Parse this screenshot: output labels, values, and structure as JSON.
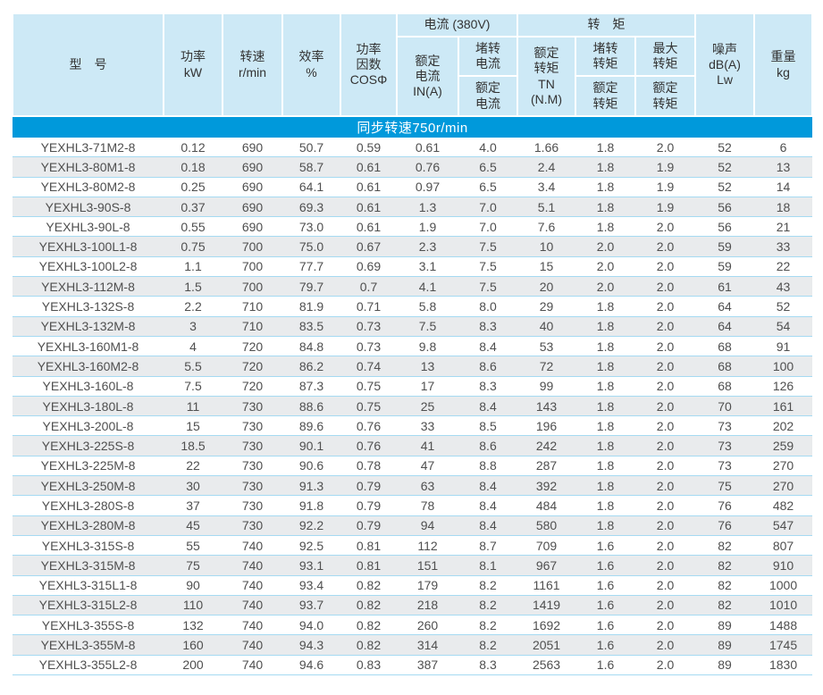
{
  "colors": {
    "banner_bg": "#0099db",
    "header_bg": "#cde9f6",
    "row_alt_bg": "#e9ebed",
    "row_line": "#a5daf2",
    "banner_text": "#ffffff",
    "body_text": "#4f4f4f",
    "header_text": "#333333"
  },
  "table": {
    "banner": "同步转速750r/min",
    "header": {
      "model": "型　号",
      "power": "功率\nkW",
      "speed": "转速\nr/min",
      "efficiency": "效率\n%",
      "power_factor": "功率\n因数\nCOSΦ",
      "current_group": "电流 (380V)",
      "rated_current": "额定\n电流\nIN(A)",
      "locked_current_num": "堵转\n电流",
      "locked_current_den": "额定\n电流",
      "torque_group": "转　矩",
      "rated_torque": "额定\n转矩\nTN\n(N.M)",
      "locked_torque_num": "堵转\n转矩",
      "locked_torque_den": "额定\n转矩",
      "max_torque_num": "最大\n转矩",
      "max_torque_den": "额定\n转矩",
      "noise": "噪声\ndB(A)\nLw",
      "weight": "重量\nkg"
    },
    "rows": [
      [
        "YEXHL3-71M2-8",
        "0.12",
        "690",
        "50.7",
        "0.59",
        "0.61",
        "4.0",
        "1.66",
        "1.8",
        "2.0",
        "52",
        "6"
      ],
      [
        "YEXHL3-80M1-8",
        "0.18",
        "690",
        "58.7",
        "0.61",
        "0.76",
        "6.5",
        "2.4",
        "1.8",
        "1.9",
        "52",
        "13"
      ],
      [
        "YEXHL3-80M2-8",
        "0.25",
        "690",
        "64.1",
        "0.61",
        "0.97",
        "6.5",
        "3.4",
        "1.8",
        "1.9",
        "52",
        "14"
      ],
      [
        "YEXHL3-90S-8",
        "0.37",
        "690",
        "69.3",
        "0.61",
        "1.3",
        "7.0",
        "5.1",
        "1.8",
        "1.9",
        "56",
        "18"
      ],
      [
        "YEXHL3-90L-8",
        "0.55",
        "690",
        "73.0",
        "0.61",
        "1.9",
        "7.0",
        "7.6",
        "1.8",
        "2.0",
        "56",
        "21"
      ],
      [
        "YEXHL3-100L1-8",
        "0.75",
        "700",
        "75.0",
        "0.67",
        "2.3",
        "7.5",
        "10",
        "2.0",
        "2.0",
        "59",
        "33"
      ],
      [
        "YEXHL3-100L2-8",
        "1.1",
        "700",
        "77.7",
        "0.69",
        "3.1",
        "7.5",
        "15",
        "2.0",
        "2.0",
        "59",
        "22"
      ],
      [
        "YEXHL3-112M-8",
        "1.5",
        "700",
        "79.7",
        "0.7",
        "4.1",
        "7.5",
        "20",
        "2.0",
        "2.0",
        "61",
        "43"
      ],
      [
        "YEXHL3-132S-8",
        "2.2",
        "710",
        "81.9",
        "0.71",
        "5.8",
        "8.0",
        "29",
        "1.8",
        "2.0",
        "64",
        "52"
      ],
      [
        "YEXHL3-132M-8",
        "3",
        "710",
        "83.5",
        "0.73",
        "7.5",
        "8.3",
        "40",
        "1.8",
        "2.0",
        "64",
        "54"
      ],
      [
        "YEXHL3-160M1-8",
        "4",
        "720",
        "84.8",
        "0.73",
        "9.8",
        "8.4",
        "53",
        "1.8",
        "2.0",
        "68",
        "91"
      ],
      [
        "YEXHL3-160M2-8",
        "5.5",
        "720",
        "86.2",
        "0.74",
        "13",
        "8.6",
        "72",
        "1.8",
        "2.0",
        "68",
        "100"
      ],
      [
        "YEXHL3-160L-8",
        "7.5",
        "720",
        "87.3",
        "0.75",
        "17",
        "8.3",
        "99",
        "1.8",
        "2.0",
        "68",
        "126"
      ],
      [
        "YEXHL3-180L-8",
        "11",
        "730",
        "88.6",
        "0.75",
        "25",
        "8.4",
        "143",
        "1.8",
        "2.0",
        "70",
        "161"
      ],
      [
        "YEXHL3-200L-8",
        "15",
        "730",
        "89.6",
        "0.76",
        "33",
        "8.5",
        "196",
        "1.8",
        "2.0",
        "73",
        "202"
      ],
      [
        "YEXHL3-225S-8",
        "18.5",
        "730",
        "90.1",
        "0.76",
        "41",
        "8.6",
        "242",
        "1.8",
        "2.0",
        "73",
        "259"
      ],
      [
        "YEXHL3-225M-8",
        "22",
        "730",
        "90.6",
        "0.78",
        "47",
        "8.8",
        "287",
        "1.8",
        "2.0",
        "73",
        "270"
      ],
      [
        "YEXHL3-250M-8",
        "30",
        "730",
        "91.3",
        "0.79",
        "63",
        "8.4",
        "392",
        "1.8",
        "2.0",
        "75",
        "270"
      ],
      [
        "YEXHL3-280S-8",
        "37",
        "730",
        "91.8",
        "0.79",
        "78",
        "8.4",
        "484",
        "1.8",
        "2.0",
        "76",
        "482"
      ],
      [
        "YEXHL3-280M-8",
        "45",
        "730",
        "92.2",
        "0.79",
        "94",
        "8.4",
        "580",
        "1.8",
        "2.0",
        "76",
        "547"
      ],
      [
        "YEXHL3-315S-8",
        "55",
        "740",
        "92.5",
        "0.81",
        "112",
        "8.7",
        "709",
        "1.6",
        "2.0",
        "82",
        "807"
      ],
      [
        "YEXHL3-315M-8",
        "75",
        "740",
        "93.1",
        "0.81",
        "151",
        "8.1",
        "967",
        "1.6",
        "2.0",
        "82",
        "910"
      ],
      [
        "YEXHL3-315L1-8",
        "90",
        "740",
        "93.4",
        "0.82",
        "179",
        "8.2",
        "1161",
        "1.6",
        "2.0",
        "82",
        "1000"
      ],
      [
        "YEXHL3-315L2-8",
        "110",
        "740",
        "93.7",
        "0.82",
        "218",
        "8.2",
        "1419",
        "1.6",
        "2.0",
        "82",
        "1010"
      ],
      [
        "YEXHL3-355S-8",
        "132",
        "740",
        "94.0",
        "0.82",
        "260",
        "8.2",
        "1692",
        "1.6",
        "2.0",
        "89",
        "1488"
      ],
      [
        "YEXHL3-355M-8",
        "160",
        "740",
        "94.3",
        "0.82",
        "314",
        "8.2",
        "2051",
        "1.6",
        "2.0",
        "89",
        "1745"
      ],
      [
        "YEXHL3-355L2-8",
        "200",
        "740",
        "94.6",
        "0.83",
        "387",
        "8.3",
        "2563",
        "1.6",
        "2.0",
        "89",
        "1830"
      ]
    ]
  }
}
